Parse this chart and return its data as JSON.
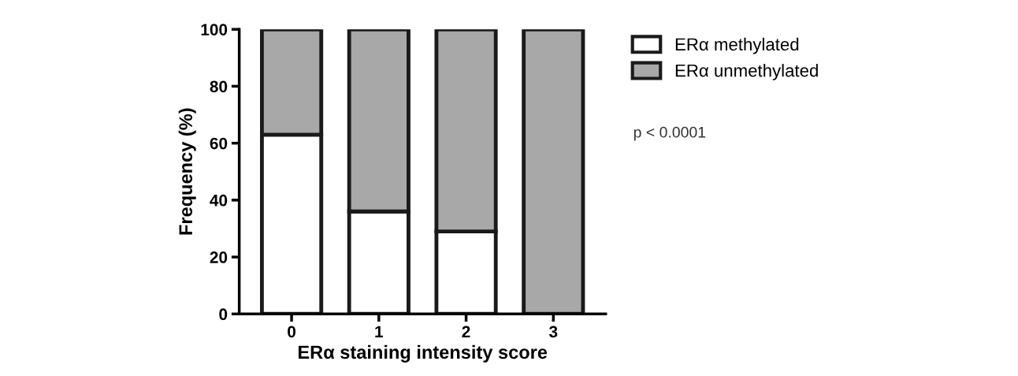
{
  "chart_data": {
    "type": "bar",
    "stacked": true,
    "xlabel": "ERα staining intensity score",
    "ylabel": "Frequency (%)",
    "categories": [
      "0",
      "1",
      "2",
      "3"
    ],
    "series": [
      {
        "name": "ERα methylated",
        "color": "#ffffff",
        "values": [
          63,
          36,
          29,
          0
        ]
      },
      {
        "name": "ERα unmethylated",
        "color": "#a8a8a8",
        "values": [
          37,
          64,
          71,
          100
        ]
      }
    ],
    "ylim": [
      0,
      100
    ],
    "yticks": [
      0,
      20,
      40,
      60,
      80,
      100
    ],
    "grid": false,
    "legend": "top right",
    "annotations": [
      "p < 0.0001"
    ]
  }
}
